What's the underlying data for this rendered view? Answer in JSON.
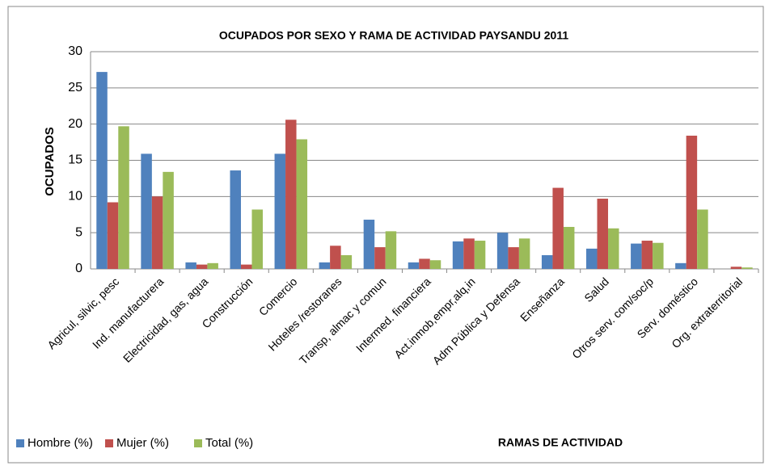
{
  "chart_data": {
    "type": "bar",
    "title": "OCUPADOS POR SEXO Y RAMA DE ACTIVIDAD PAYSANDU 2011",
    "y_label": "OCUPADOS",
    "x_label": "RAMAS DE ACTIVIDAD",
    "categories": [
      "Agricul, silvic, pesc",
      "Ind. manufacturera",
      "Electricidad, gas, agua",
      "Construcción",
      "Comercio",
      "Hoteles /restoranes",
      "Transp, almac y comun",
      "Intermed. financiera",
      "Act.inmob,empr,alq,in",
      "Adm Pública y Defensa",
      "Enseñanza",
      "Salud",
      "Otros serv. com/soc/p",
      "Serv. doméstico",
      "Org. extraterritorial"
    ],
    "series": [
      {
        "name": "Hombre (%)",
        "color": "#4f81bd",
        "values": [
          27.2,
          15.9,
          0.9,
          13.6,
          15.9,
          0.9,
          6.8,
          0.9,
          3.8,
          5.0,
          1.9,
          2.8,
          3.5,
          0.8,
          0
        ]
      },
      {
        "name": "Mujer (%)",
        "color": "#c0504d",
        "values": [
          9.2,
          10.0,
          0.6,
          0.6,
          20.6,
          3.2,
          3.0,
          1.4,
          4.2,
          3.0,
          11.2,
          9.7,
          3.9,
          18.4,
          0.3
        ]
      },
      {
        "name": "Total (%)",
        "color": "#9bbb59",
        "values": [
          19.7,
          13.4,
          0.8,
          8.2,
          17.9,
          1.9,
          5.2,
          1.2,
          3.9,
          4.2,
          5.8,
          5.6,
          3.6,
          8.2,
          0.2
        ]
      }
    ],
    "ylim": [
      0,
      30
    ],
    "yticks": [
      0,
      5,
      10,
      15,
      20,
      25,
      30
    ],
    "grid": true,
    "legend": "bottom"
  }
}
